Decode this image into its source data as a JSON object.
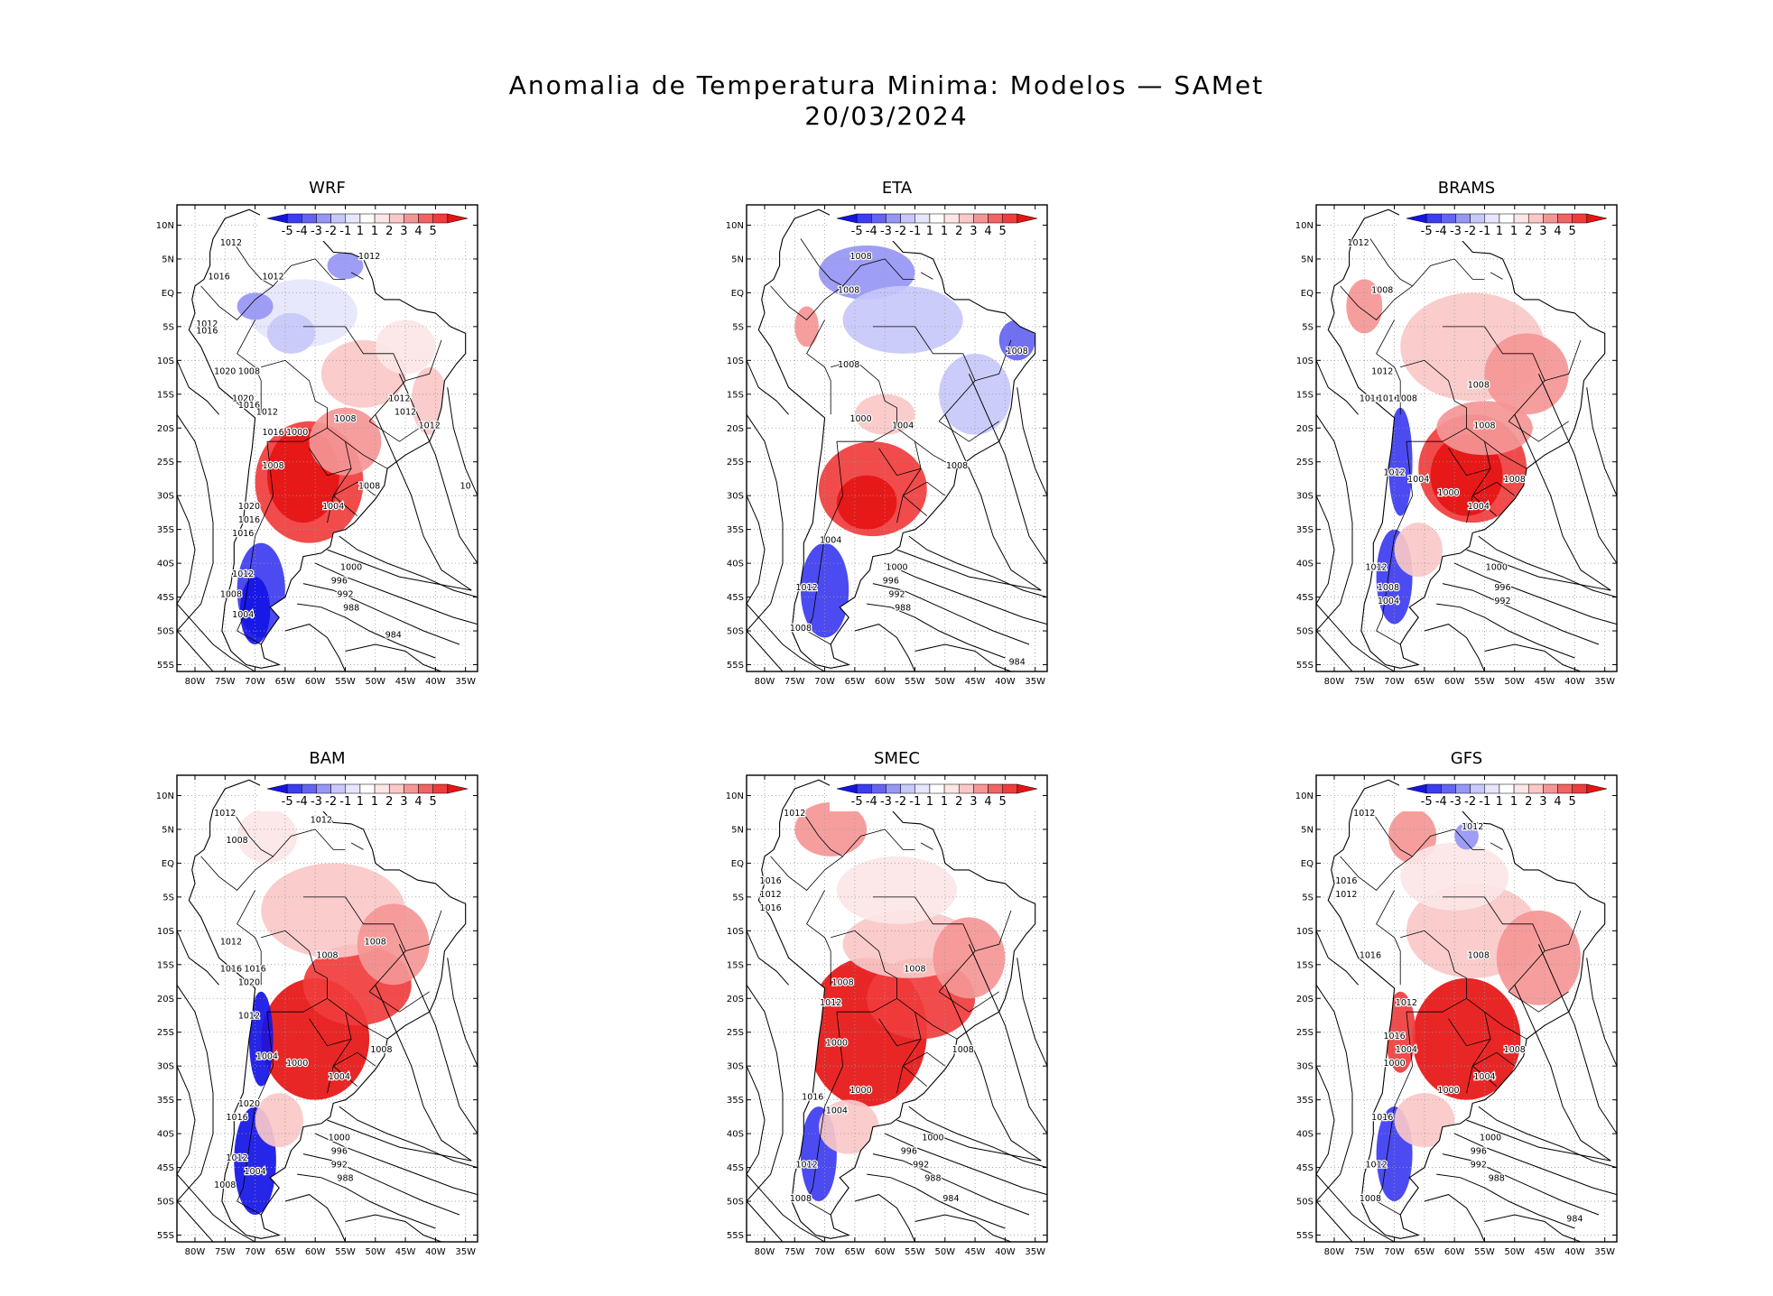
{
  "figure": {
    "title_line1": "Anomalia de Temperatura Minima: Modelos — SAMet",
    "title_line2": "20/03/2024"
  },
  "axes": {
    "lat_labels": [
      "10N",
      "5N",
      "EQ",
      "5S",
      "10S",
      "15S",
      "20S",
      "25S",
      "30S",
      "35S",
      "40S",
      "45S",
      "50S",
      "55S"
    ],
    "lon_labels": [
      "80W",
      "75W",
      "70W",
      "65W",
      "60W",
      "55W",
      "50W",
      "45W",
      "40W",
      "35W"
    ]
  },
  "colorbar": {
    "labels": [
      "-5",
      "-4",
      "-3",
      "-2",
      "-1",
      "1",
      "1",
      "2",
      "3",
      "4",
      "5"
    ],
    "colors": [
      "#1414e6",
      "#3c3cf0",
      "#6464f0",
      "#9696f5",
      "#c8c8fa",
      "#e6e6fc",
      "#ffffff",
      "#fce6e6",
      "#fac8c8",
      "#f59696",
      "#f06464",
      "#f03c3c",
      "#e61414"
    ]
  },
  "panels": [
    {
      "name": "WRF",
      "pattern": "WRF",
      "labels": [
        {
          "t": "1012",
          "lon": -63,
          "lat": 9
        },
        {
          "t": "1012",
          "lon": -60,
          "lat": 9
        },
        {
          "t": "1012",
          "lon": -74,
          "lat": 7
        },
        {
          "t": "1012",
          "lon": -67,
          "lat": 2
        },
        {
          "t": "1012",
          "lon": -51,
          "lat": 5
        },
        {
          "t": "1016",
          "lon": -76,
          "lat": 2
        },
        {
          "t": "1012",
          "lon": -78,
          "lat": -5
        },
        {
          "t": "1016",
          "lon": -78,
          "lat": -6
        },
        {
          "t": "1020",
          "lon": -75,
          "lat": -12
        },
        {
          "t": "1008",
          "lon": -71,
          "lat": -12
        },
        {
          "t": "1020",
          "lon": -72,
          "lat": -16
        },
        {
          "t": "1016",
          "lon": -71,
          "lat": -17
        },
        {
          "t": "1012",
          "lon": -68,
          "lat": -18
        },
        {
          "t": "1008",
          "lon": -55,
          "lat": -19
        },
        {
          "t": "1016",
          "lon": -67,
          "lat": -21
        },
        {
          "t": "1000",
          "lon": -63,
          "lat": -21
        },
        {
          "t": "1008",
          "lon": -67,
          "lat": -26
        },
        {
          "t": "1008",
          "lon": -51,
          "lat": -29
        },
        {
          "t": "1004",
          "lon": -57,
          "lat": -32
        },
        {
          "t": "1020",
          "lon": -71,
          "lat": -32
        },
        {
          "t": "1016",
          "lon": -71,
          "lat": -34
        },
        {
          "t": "1016",
          "lon": -72,
          "lat": -36
        },
        {
          "t": "1012",
          "lon": -46,
          "lat": -16
        },
        {
          "t": "1012",
          "lon": -45,
          "lat": -18
        },
        {
          "t": "1012",
          "lon": -41,
          "lat": -20
        },
        {
          "t": "10",
          "lon": -35,
          "lat": -29
        },
        {
          "t": "1012",
          "lon": -72,
          "lat": -42
        },
        {
          "t": "1008",
          "lon": -74,
          "lat": -45
        },
        {
          "t": "1004",
          "lon": -72,
          "lat": -48
        },
        {
          "t": "1000",
          "lon": -54,
          "lat": -41
        },
        {
          "t": "996",
          "lon": -56,
          "lat": -43
        },
        {
          "t": "992",
          "lon": -55,
          "lat": -45
        },
        {
          "t": "988",
          "lon": -54,
          "lat": -47
        },
        {
          "t": "984",
          "lon": -47,
          "lat": -51
        }
      ]
    },
    {
      "name": "ETA",
      "pattern": "ETA",
      "labels": [
        {
          "t": "1008",
          "lon": -64,
          "lat": 5
        },
        {
          "t": "1008",
          "lon": -66,
          "lat": 0
        },
        {
          "t": "1008",
          "lon": -66,
          "lat": -11
        },
        {
          "t": "1008",
          "lon": -38,
          "lat": -9
        },
        {
          "t": "1000",
          "lon": -64,
          "lat": -19
        },
        {
          "t": "1004",
          "lon": -57,
          "lat": -20
        },
        {
          "t": "1008",
          "lon": -48,
          "lat": -26
        },
        {
          "t": "1004",
          "lon": -69,
          "lat": -37
        },
        {
          "t": "1012",
          "lon": -73,
          "lat": -44
        },
        {
          "t": "1008",
          "lon": -74,
          "lat": -50
        },
        {
          "t": "1000",
          "lon": -58,
          "lat": -41
        },
        {
          "t": "996",
          "lon": -59,
          "lat": -43
        },
        {
          "t": "992",
          "lon": -58,
          "lat": -45
        },
        {
          "t": "988",
          "lon": -57,
          "lat": -47
        },
        {
          "t": "984",
          "lon": -38,
          "lat": -55
        }
      ]
    },
    {
      "name": "BRAMS",
      "pattern": "BRAMS",
      "labels": [
        {
          "t": "1012",
          "lon": -76,
          "lat": 7
        },
        {
          "t": "1008",
          "lon": -72,
          "lat": 0
        },
        {
          "t": "1012",
          "lon": -72,
          "lat": -12
        },
        {
          "t": "1016",
          "lon": -74,
          "lat": -16
        },
        {
          "t": "1016",
          "lon": -71,
          "lat": -16
        },
        {
          "t": "1008",
          "lon": -68,
          "lat": -16
        },
        {
          "t": "1008",
          "lon": -56,
          "lat": -14
        },
        {
          "t": "1008",
          "lon": -55,
          "lat": -20
        },
        {
          "t": "1012",
          "lon": -70,
          "lat": -27
        },
        {
          "t": "1004",
          "lon": -66,
          "lat": -28
        },
        {
          "t": "1000",
          "lon": -61,
          "lat": -30
        },
        {
          "t": "1004",
          "lon": -56,
          "lat": -32
        },
        {
          "t": "1008",
          "lon": -50,
          "lat": -28
        },
        {
          "t": "1012",
          "lon": -73,
          "lat": -41
        },
        {
          "t": "1008",
          "lon": -71,
          "lat": -44
        },
        {
          "t": "1004",
          "lon": -71,
          "lat": -46
        },
        {
          "t": "1000",
          "lon": -53,
          "lat": -41
        },
        {
          "t": "996",
          "lon": -52,
          "lat": -44
        },
        {
          "t": "992",
          "lon": -52,
          "lat": -46
        }
      ]
    },
    {
      "name": "BAM",
      "pattern": "BAM",
      "labels": [
        {
          "t": "1012",
          "lon": -75,
          "lat": 7
        },
        {
          "t": "1012",
          "lon": -59,
          "lat": 6
        },
        {
          "t": "1008",
          "lon": -73,
          "lat": 3
        },
        {
          "t": "1012",
          "lon": -74,
          "lat": -12
        },
        {
          "t": "1016",
          "lon": -74,
          "lat": -16
        },
        {
          "t": "1016",
          "lon": -70,
          "lat": -16
        },
        {
          "t": "1008",
          "lon": -58,
          "lat": -14
        },
        {
          "t": "1008",
          "lon": -50,
          "lat": -12
        },
        {
          "t": "1020",
          "lon": -71,
          "lat": -18
        },
        {
          "t": "1012",
          "lon": -71,
          "lat": -23
        },
        {
          "t": "1004",
          "lon": -68,
          "lat": -29
        },
        {
          "t": "1000",
          "lon": -63,
          "lat": -30
        },
        {
          "t": "1004",
          "lon": -56,
          "lat": -32
        },
        {
          "t": "1008",
          "lon": -49,
          "lat": -28
        },
        {
          "t": "1020",
          "lon": -71,
          "lat": -36
        },
        {
          "t": "1016",
          "lon": -73,
          "lat": -38
        },
        {
          "t": "1012",
          "lon": -73,
          "lat": -44
        },
        {
          "t": "1004",
          "lon": -70,
          "lat": -46
        },
        {
          "t": "1008",
          "lon": -75,
          "lat": -48
        },
        {
          "t": "1000",
          "lon": -56,
          "lat": -41
        },
        {
          "t": "996",
          "lon": -56,
          "lat": -43
        },
        {
          "t": "992",
          "lon": -56,
          "lat": -45
        },
        {
          "t": "988",
          "lon": -55,
          "lat": -47
        }
      ]
    },
    {
      "name": "SMEC",
      "pattern": "SMEC",
      "labels": [
        {
          "t": "1012",
          "lon": -63,
          "lat": 9
        },
        {
          "t": "1012",
          "lon": -75,
          "lat": 7
        },
        {
          "t": "1016",
          "lon": -79,
          "lat": -3
        },
        {
          "t": "1012",
          "lon": -79,
          "lat": -5
        },
        {
          "t": "1016",
          "lon": -79,
          "lat": -7
        },
        {
          "t": "1008",
          "lon": -55,
          "lat": -16
        },
        {
          "t": "1008",
          "lon": -67,
          "lat": -18
        },
        {
          "t": "1012",
          "lon": -69,
          "lat": -21
        },
        {
          "t": "1000",
          "lon": -68,
          "lat": -27
        },
        {
          "t": "1000",
          "lon": -64,
          "lat": -34
        },
        {
          "t": "1004",
          "lon": -68,
          "lat": -37
        },
        {
          "t": "1016",
          "lon": -72,
          "lat": -35
        },
        {
          "t": "1008",
          "lon": -47,
          "lat": -28
        },
        {
          "t": "1000",
          "lon": -52,
          "lat": -41
        },
        {
          "t": "996",
          "lon": -56,
          "lat": -43
        },
        {
          "t": "992",
          "lon": -54,
          "lat": -45
        },
        {
          "t": "988",
          "lon": -52,
          "lat": -47
        },
        {
          "t": "984",
          "lon": -49,
          "lat": -50
        },
        {
          "t": "1012",
          "lon": -73,
          "lat": -45
        },
        {
          "t": "1008",
          "lon": -74,
          "lat": -50
        }
      ]
    },
    {
      "name": "GFS",
      "pattern": "GFS",
      "labels": [
        {
          "t": "1012",
          "lon": -75,
          "lat": 7
        },
        {
          "t": "1012",
          "lon": -57,
          "lat": 5
        },
        {
          "t": "1016",
          "lon": -78,
          "lat": -3
        },
        {
          "t": "1012",
          "lon": -78,
          "lat": -5
        },
        {
          "t": "1016",
          "lon": -74,
          "lat": -14
        },
        {
          "t": "1008",
          "lon": -56,
          "lat": -14
        },
        {
          "t": "1012",
          "lon": -68,
          "lat": -21
        },
        {
          "t": "1016",
          "lon": -70,
          "lat": -26
        },
        {
          "t": "1004",
          "lon": -68,
          "lat": -28
        },
        {
          "t": "1000",
          "lon": -70,
          "lat": -30
        },
        {
          "t": "1004",
          "lon": -55,
          "lat": -32
        },
        {
          "t": "1000",
          "lon": -61,
          "lat": -34
        },
        {
          "t": "1008",
          "lon": -50,
          "lat": -28
        },
        {
          "t": "1016",
          "lon": -72,
          "lat": -38
        },
        {
          "t": "1000",
          "lon": -54,
          "lat": -41
        },
        {
          "t": "996",
          "lon": -56,
          "lat": -43
        },
        {
          "t": "992",
          "lon": -56,
          "lat": -45
        },
        {
          "t": "988",
          "lon": -53,
          "lat": -47
        },
        {
          "t": "984",
          "lon": -40,
          "lat": -53
        },
        {
          "t": "1012",
          "lon": -73,
          "lat": -45
        },
        {
          "t": "1008",
          "lon": -74,
          "lat": -50
        }
      ]
    }
  ]
}
